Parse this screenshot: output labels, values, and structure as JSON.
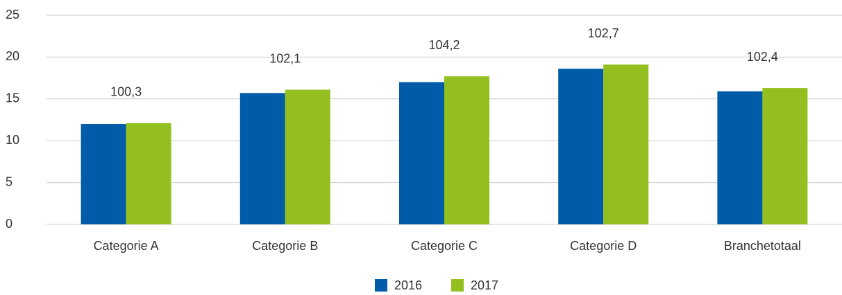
{
  "chart_data": {
    "type": "bar",
    "categories": [
      "Categorie A",
      "Categorie B",
      "Categorie C",
      "Categorie D",
      "Branchetotaal"
    ],
    "series": [
      {
        "name": "2016",
        "color": "#005ca8",
        "values": [
          12.0,
          15.7,
          17.0,
          18.6,
          15.9
        ]
      },
      {
        "name": "2017",
        "color": "#93c01f",
        "values": [
          12.1,
          16.1,
          17.7,
          19.1,
          16.3
        ]
      }
    ],
    "annotations": [
      "100,3",
      "102,1",
      "104,2",
      "102,7",
      "102,4"
    ],
    "ylim": [
      0,
      25
    ],
    "yticks": [
      0,
      5,
      10,
      15,
      20,
      25
    ],
    "grid": true
  }
}
